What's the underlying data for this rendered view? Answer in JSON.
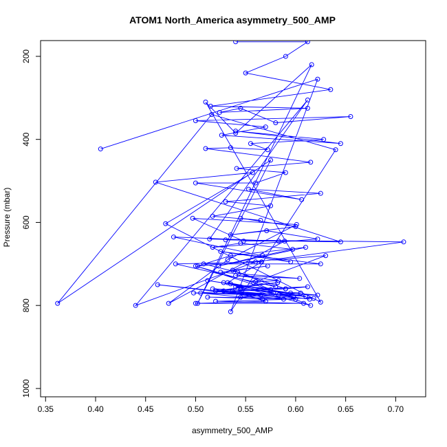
{
  "chart_data": {
    "type": "line",
    "title": "ATOM1 North_America asymmetry_500_AMP",
    "xlabel": "asymmetry_500_AMP",
    "ylabel": "Pressure (mbar)",
    "xlim": [
      0.345,
      0.73
    ],
    "ylim": [
      1020,
      162
    ],
    "y_reversed": true,
    "grid": false,
    "legend": "none",
    "x_ticks": [
      0.35,
      0.4,
      0.45,
      0.5,
      0.55,
      0.6,
      0.65,
      0.7
    ],
    "x_tick_labels": [
      "0.35",
      "0.40",
      "0.45",
      "0.50",
      "0.55",
      "0.60",
      "0.65",
      "0.70"
    ],
    "y_ticks": [
      200,
      400,
      600,
      800,
      1000
    ],
    "y_tick_labels": [
      "200",
      "400",
      "600",
      "800",
      "1000"
    ],
    "series": [
      {
        "color": "#0000ff",
        "marker": "open-circle",
        "x": [
          0.405,
          0.622,
          0.535,
          0.64,
          0.516,
          0.362,
          0.575,
          0.502,
          0.616,
          0.54,
          0.51,
          0.625,
          0.47,
          0.557,
          0.46,
          0.645,
          0.53,
          0.708,
          0.56,
          0.44,
          0.612,
          0.514,
          0.589,
          0.473,
          0.532,
          0.601,
          0.497,
          0.548,
          0.583,
          0.478,
          0.595,
          0.525,
          0.625,
          0.508,
          0.542,
          0.58,
          0.48,
          0.566,
          0.532,
          0.618,
          0.512,
          0.588,
          0.462,
          0.6,
          0.52,
          0.608,
          0.5,
          0.57,
          0.537,
          0.583,
          0.614,
          0.528,
          0.545,
          0.59,
          0.498,
          0.565,
          0.52,
          0.61,
          0.535,
          0.575,
          0.512,
          0.595,
          0.545,
          0.622,
          0.505,
          0.567,
          0.517,
          0.605,
          0.545,
          0.578,
          0.528,
          0.615,
          0.558,
          0.5,
          0.598,
          0.54,
          0.582,
          0.52,
          0.612,
          0.59,
          0.537,
          0.572,
          0.525,
          0.604,
          0.54,
          0.583,
          0.56,
          0.63,
          0.502,
          0.535,
          0.61,
          0.523,
          0.567,
          0.597,
          0.545,
          0.517,
          0.622,
          0.571,
          0.535,
          0.6,
          0.545,
          0.565,
          0.517,
          0.575,
          0.53,
          0.625,
          0.553,
          0.606,
          0.5,
          0.56,
          0.59,
          0.541,
          0.615,
          0.51,
          0.535,
          0.572,
          0.555,
          0.628,
          0.54,
          0.645,
          0.526,
          0.57,
          0.5,
          0.655,
          0.58,
          0.545,
          0.524,
          0.612,
          0.515,
          0.635,
          0.55,
          0.59,
          0.612,
          0.54
        ],
        "y": [
          423,
          255,
          815,
          425,
          340,
          795,
          450,
          795,
          220,
          385,
          310,
          792,
          603,
          480,
          503,
          647,
          642,
          647,
          695,
          800,
          305,
          640,
          645,
          795,
          690,
          605,
          590,
          645,
          645,
          635,
          695,
          670,
          700,
          700,
          720,
          755,
          700,
          695,
          745,
          783,
          780,
          785,
          750,
          785,
          790,
          795,
          795,
          790,
          765,
          775,
          785,
          765,
          755,
          760,
          770,
          775,
          765,
          778,
          748,
          762,
          740,
          770,
          760,
          775,
          770,
          785,
          760,
          770,
          780,
          770,
          745,
          800,
          745,
          705,
          780,
          755,
          745,
          765,
          755,
          760,
          715,
          705,
          720,
          735,
          728,
          740,
          743,
          680,
          705,
          680,
          660,
          705,
          680,
          665,
          650,
          660,
          640,
          620,
          630,
          610,
          590,
          595,
          585,
          560,
          550,
          530,
          520,
          545,
          505,
          505,
          480,
          470,
          455,
          422,
          420,
          425,
          410,
          400,
          380,
          410,
          390,
          370,
          355,
          345,
          360,
          325,
          335,
          325,
          320,
          280,
          240,
          200,
          165,
          165
        ]
      }
    ]
  }
}
